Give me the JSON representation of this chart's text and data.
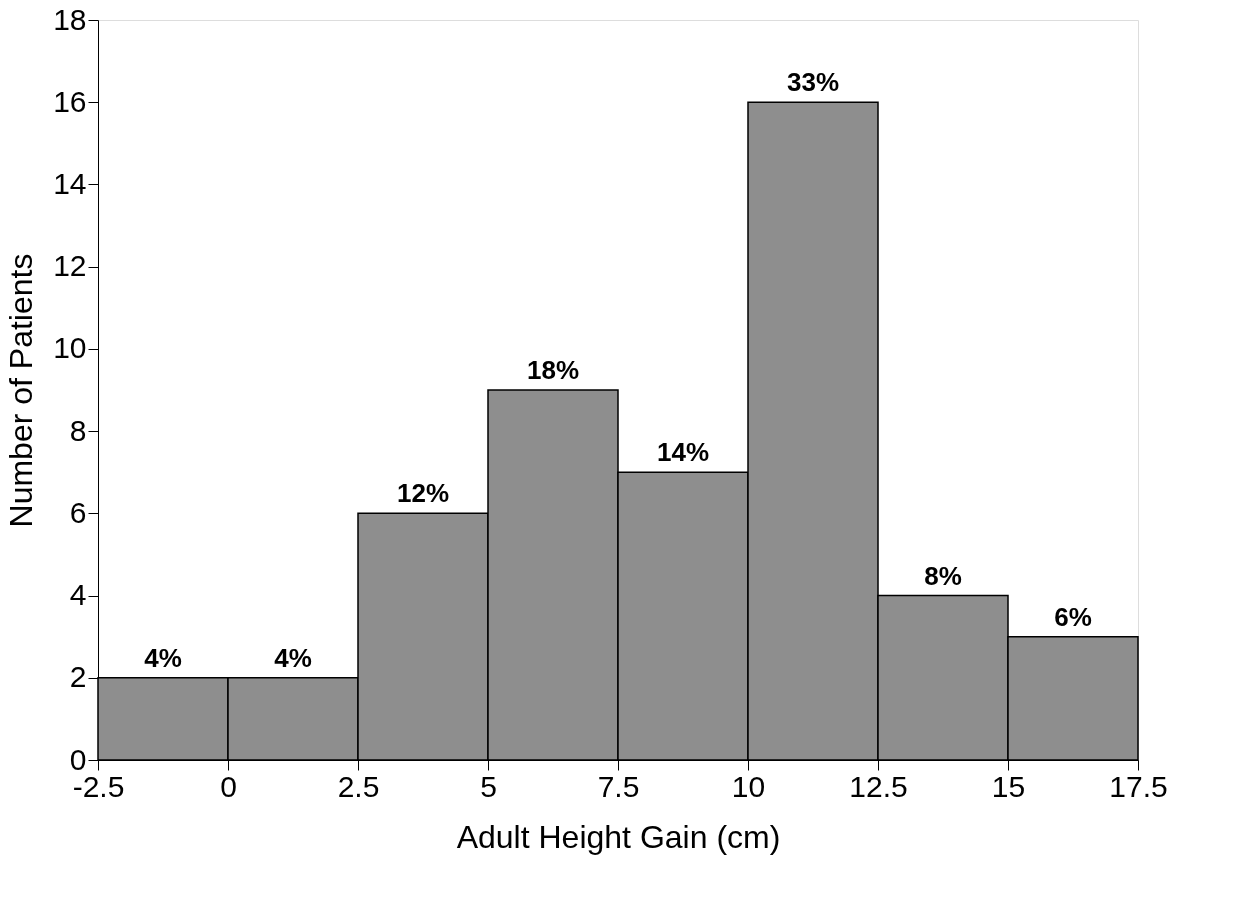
{
  "chart_data": {
    "type": "histogram",
    "xlabel": "Adult Height Gain (cm)",
    "ylabel": "Number of Patients",
    "bins": [
      -2.5,
      0,
      2.5,
      5,
      7.5,
      10,
      12.5,
      15,
      17.5
    ],
    "values": [
      2,
      2,
      6,
      9,
      7,
      16,
      4,
      3
    ],
    "annotations": [
      {
        "text": "4%",
        "x": -1.25,
        "y": 2
      },
      {
        "text": "4%",
        "x": 1.25,
        "y": 2
      },
      {
        "text": "12%",
        "x": 3.75,
        "y": 6
      },
      {
        "text": "18%",
        "x": 6.25,
        "y": 9
      },
      {
        "text": "14%",
        "x": 8.75,
        "y": 7
      },
      {
        "text": "33%",
        "x": 11.25,
        "y": 16
      },
      {
        "text": "8%",
        "x": 13.75,
        "y": 4
      },
      {
        "text": "6%",
        "x": 16.25,
        "y": 3
      }
    ],
    "color": "#8e8e8e",
    "xlim": [
      -2.5,
      17.5
    ],
    "xticks": [
      -2.5,
      0,
      2.5,
      5,
      7.5,
      10,
      12.5,
      15,
      17.5
    ],
    "ylim": [
      0,
      18
    ],
    "yticks": [
      0,
      2,
      4,
      6,
      8,
      10,
      12,
      14,
      16,
      18
    ],
    "grid": false
  }
}
